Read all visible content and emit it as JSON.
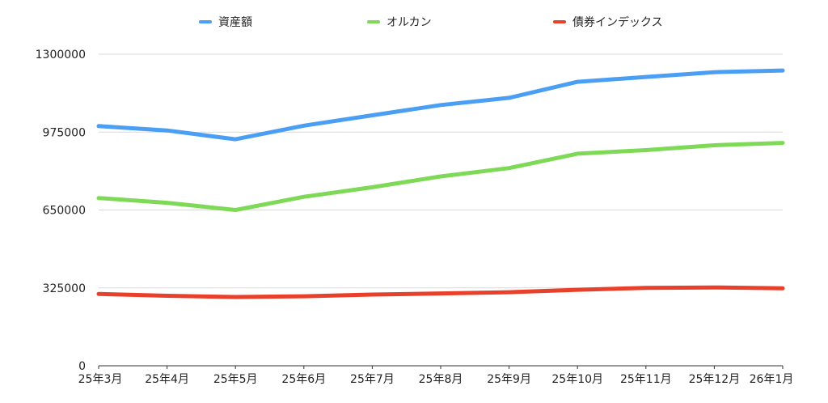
{
  "chart_data": {
    "type": "line",
    "title": "",
    "xlabel": "",
    "ylabel": "",
    "categories": [
      "25年3月",
      "25年4月",
      "25年5月",
      "25年6月",
      "25年7月",
      "25年8月",
      "25年9月",
      "25年10月",
      "25年11月",
      "25年12月",
      "26年1月"
    ],
    "ylim": [
      0,
      1300000
    ],
    "yticks": [
      "0",
      "325000",
      "650000",
      "975000",
      "1300000"
    ],
    "grid": true,
    "legend_position": "top",
    "series": [
      {
        "name": "資産額",
        "color": "#4a9ff5",
        "values": [
          1000000,
          982000,
          945000,
          1002000,
          1045000,
          1088000,
          1118000,
          1185000,
          1205000,
          1225000,
          1232000
        ]
      },
      {
        "name": "オルカン",
        "color": "#7ed957",
        "values": [
          700000,
          680000,
          650000,
          705000,
          745000,
          790000,
          825000,
          885000,
          900000,
          920000,
          930000
        ]
      },
      {
        "name": "債券インデックス",
        "color": "#e8402a",
        "values": [
          300000,
          292000,
          287000,
          290000,
          297000,
          302000,
          307000,
          317000,
          325000,
          327000,
          323000
        ]
      }
    ]
  }
}
